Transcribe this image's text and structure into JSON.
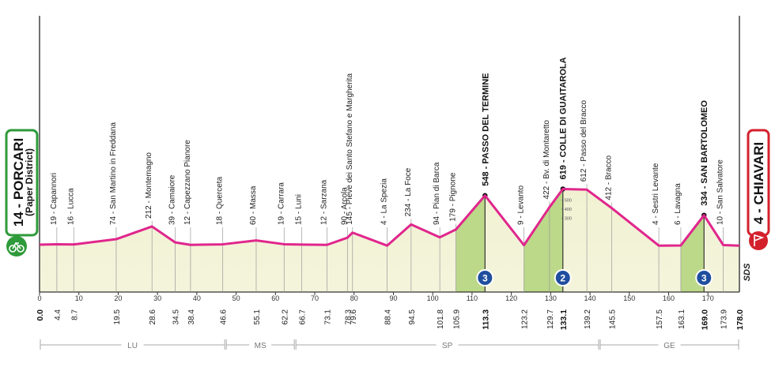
{
  "start": {
    "subtitle": "(Paper District)"
  },
  "logo": "SDS",
  "chart_data": {
    "type": "area",
    "x": [
      0.0,
      4.4,
      8.7,
      19.5,
      28.6,
      34.5,
      38.4,
      46.6,
      55.1,
      62.2,
      66.7,
      73.1,
      78.3,
      79.6,
      88.4,
      94.5,
      101.8,
      105.9,
      113.3,
      123.2,
      129.7,
      133.1,
      139.2,
      145.5,
      157.5,
      163.1,
      169.0,
      173.9,
      178.0
    ],
    "x_labels": [
      "0.0",
      "4.4",
      "8.7",
      "19.5",
      "28.6",
      "34.5",
      "38.4",
      "46.6",
      "55.1",
      "62.2",
      "66.7",
      "73.1",
      "78.3",
      "79.6",
      "88.4",
      "94.5",
      "101.8",
      "105.9",
      "113.3",
      "123.2",
      "129.7",
      "133.1",
      "139.2",
      "145.5",
      "157.5",
      "163.1",
      "169.0",
      "173.9",
      "178.0"
    ],
    "values": [
      14,
      19,
      16,
      74,
      212,
      39,
      12,
      18,
      60,
      19,
      15,
      12,
      90,
      145,
      4,
      234,
      94,
      179,
      548,
      9,
      422,
      619,
      612,
      412,
      4,
      6,
      334,
      10,
      4
    ],
    "names": [
      "14 - PORCARI",
      "19 - Capannori",
      "16 - Lucca",
      "74 - San Martino in Freddana",
      "212 - Montemagno",
      "39 - Camaiore",
      "12 - Capezzano Pianore",
      "18 - Querceta",
      "60 - Massa",
      "19 - Carrara",
      "15 - Luni",
      "12 - Sarzana",
      "90 - Arcola",
      "145 - Pieve dei Santo Stefano e Margherita",
      "4 - La Spezia",
      "234 - La Foce",
      "94 - Pian di Barca",
      "179 - Pignone",
      "548 - PASSO DEL TERMINE",
      "9 - Levanto",
      "422 - Bv. di Montaretto",
      "619 - COLLE DI GUAITAROLA",
      "612 - Passo del Bracco",
      "412 - Bracco",
      "4 - Sestri Levante",
      "6 - Lavagna",
      "334 - SAN BARTOLOMEO",
      "10 - San Salvatore",
      "4 - CHIAVARI"
    ],
    "climbs": [
      {
        "category": 3,
        "from": 105.9,
        "to": 113.3
      },
      {
        "category": 2,
        "from": 123.2,
        "to": 133.1
      },
      {
        "category": 3,
        "from": 163.1,
        "to": 169.0
      }
    ],
    "regions": [
      {
        "label": "LU",
        "from": 0,
        "to": 47.3
      },
      {
        "label": "MS",
        "from": 47.3,
        "to": 65
      },
      {
        "label": "SP",
        "from": 65,
        "to": 142.4
      },
      {
        "label": "GE",
        "from": 142.4,
        "to": 178
      }
    ],
    "xlim": [
      0,
      178
    ],
    "xticks": [
      0,
      10,
      20,
      30,
      40,
      50,
      60,
      70,
      80,
      90,
      100,
      110,
      120,
      130,
      140,
      150,
      160,
      170
    ],
    "ylim": [
      -500,
      2500
    ],
    "yticks": [
      300,
      400,
      500
    ],
    "color": "#e0268c",
    "fill_color": "#f4f4dc",
    "climb_color": "#bcd889",
    "badge_color": "#1f4e9e"
  }
}
